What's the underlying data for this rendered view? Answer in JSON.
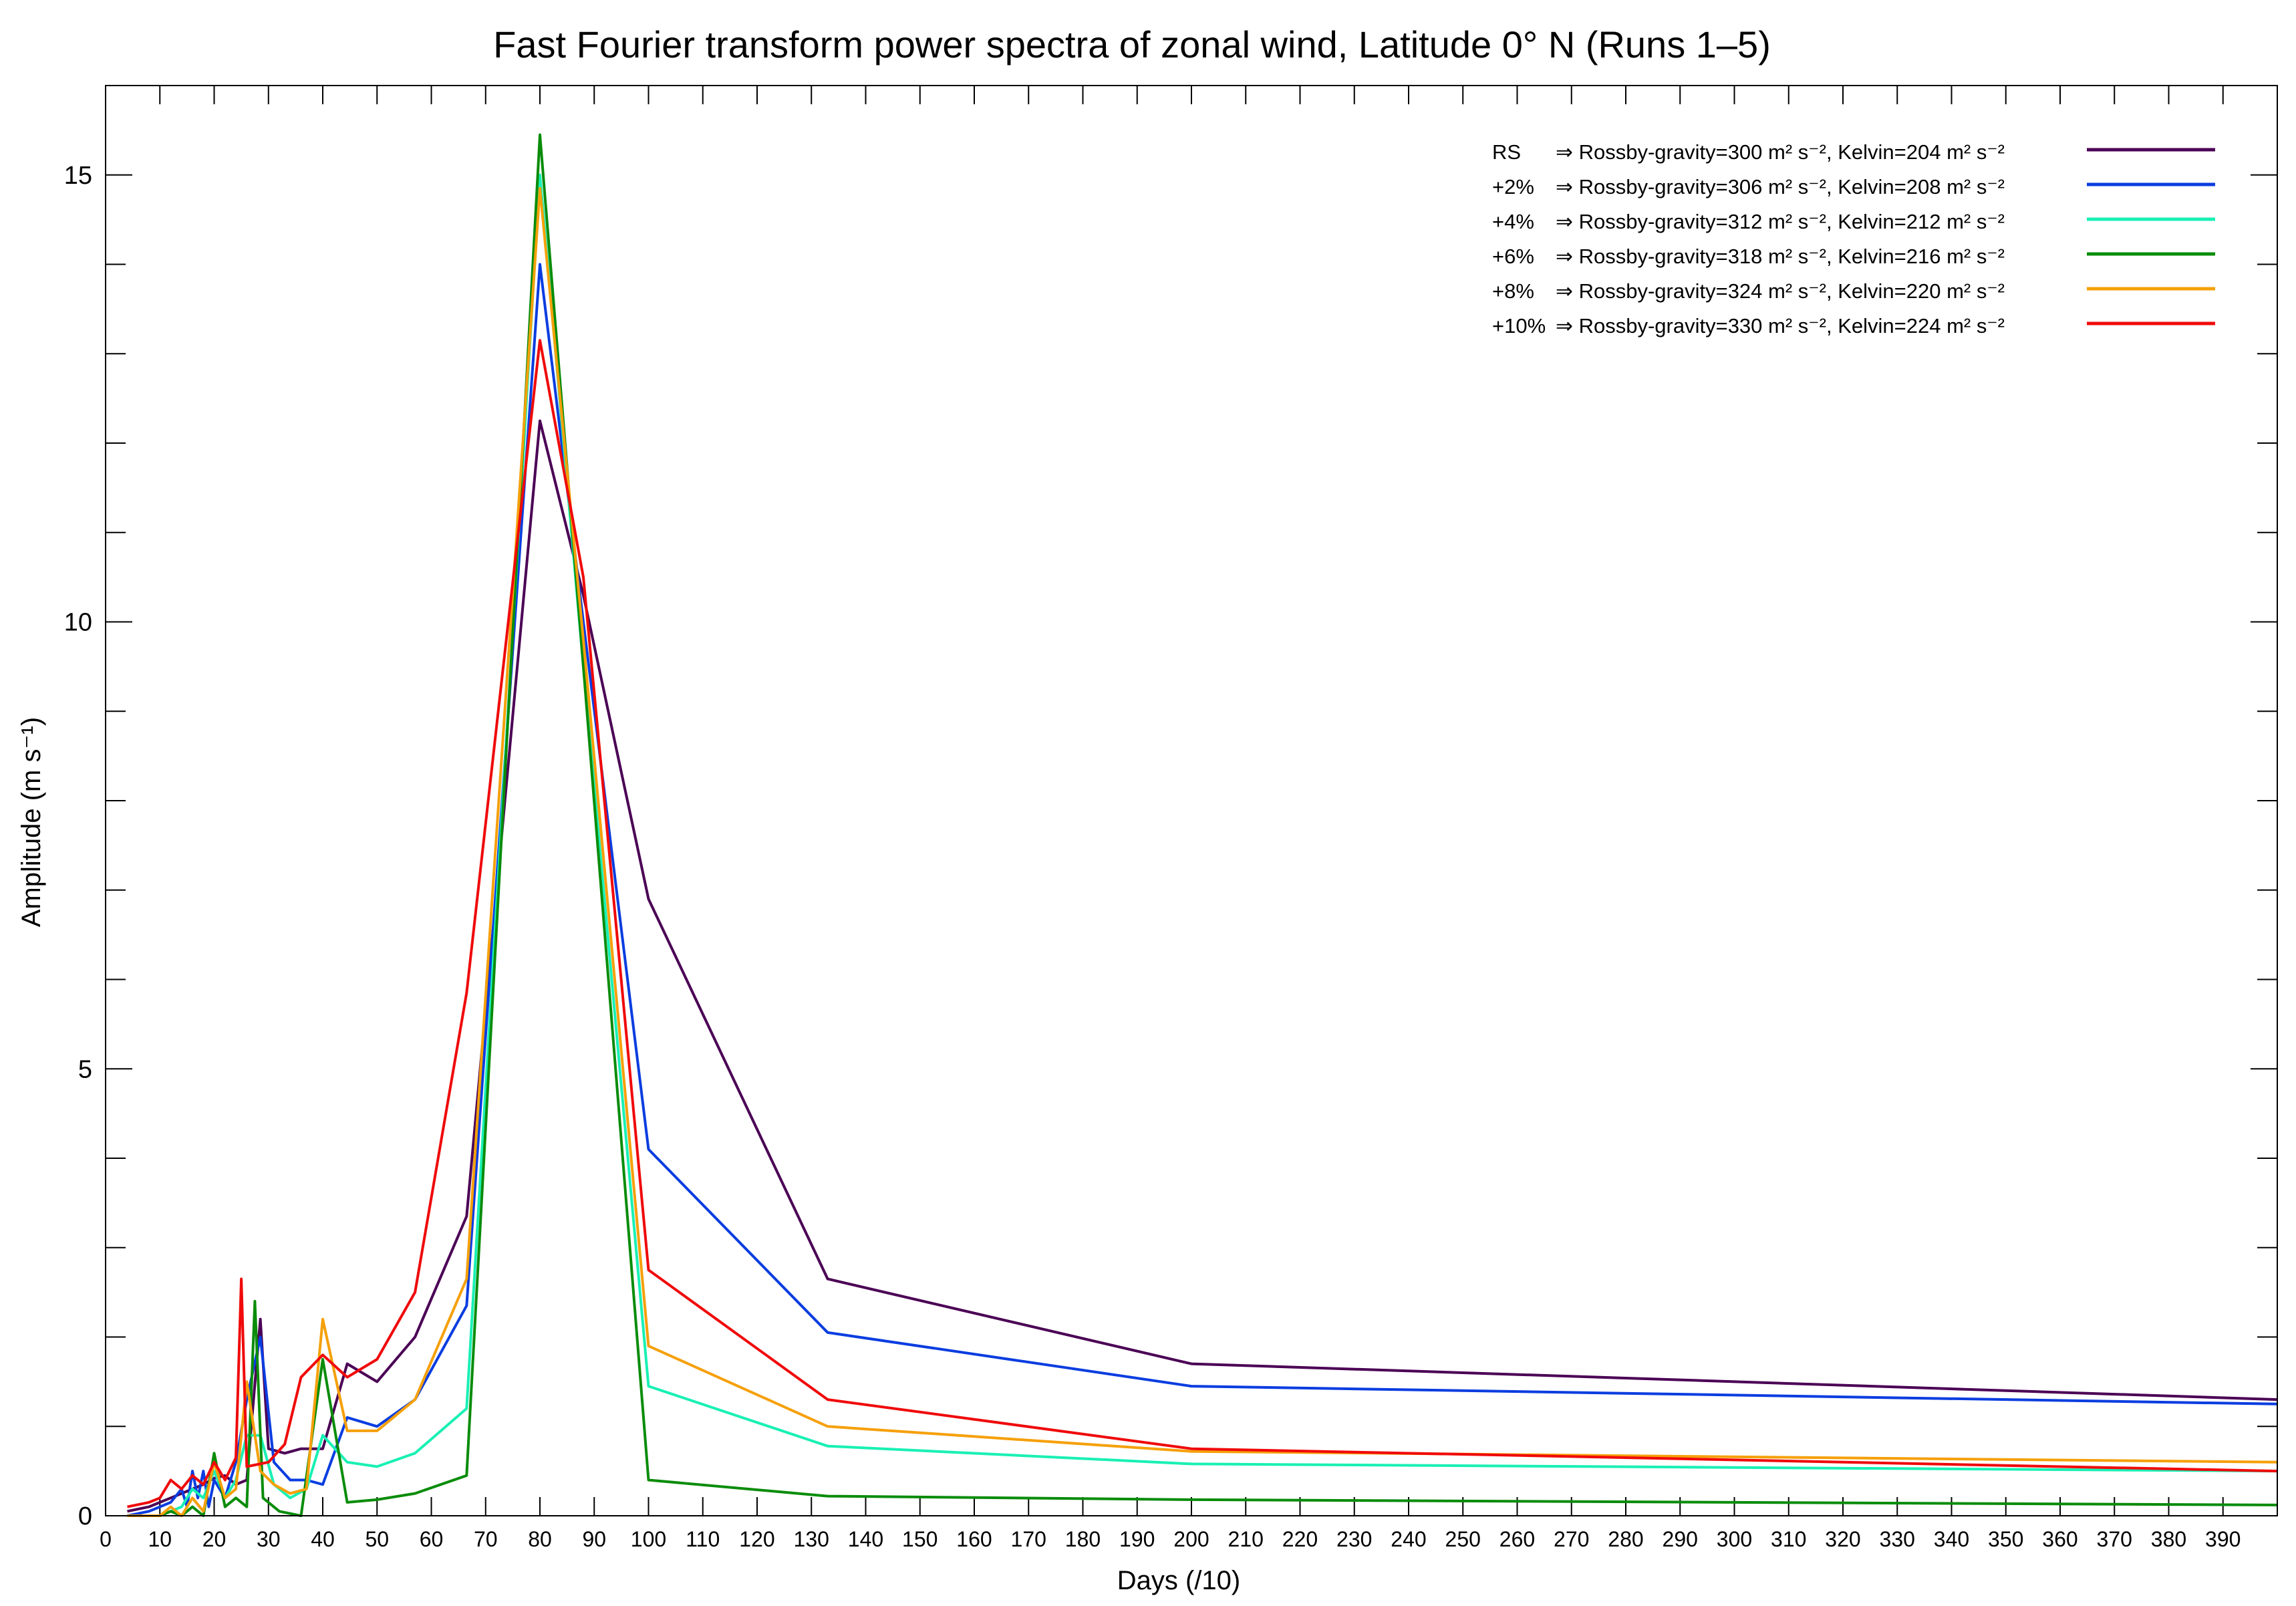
{
  "chart_data": {
    "type": "line",
    "title": "Fast Fourier transform power spectra of zonal wind, Latitude 0° N (Runs 1–5)",
    "xlabel": "Days (/10)",
    "ylabel": "Amplitude (m s⁻¹)",
    "xlim": [
      0,
      400
    ],
    "ylim": [
      0,
      16
    ],
    "xticks": [
      0,
      10,
      20,
      30,
      40,
      50,
      60,
      70,
      80,
      90,
      100,
      110,
      120,
      130,
      140,
      150,
      160,
      170,
      180,
      190,
      200,
      210,
      220,
      230,
      240,
      250,
      260,
      270,
      280,
      290,
      300,
      310,
      320,
      330,
      340,
      350,
      360,
      370,
      380,
      390
    ],
    "yticks": [
      0,
      5,
      10,
      15
    ],
    "grid": false,
    "legend_position": "top-right",
    "series": [
      {
        "name": "RS",
        "legend_text": "⇒ Rossby-gravity=300 m² s⁻², Kelvin=204 m² s⁻²",
        "color": "#4b0055",
        "x": [
          4,
          8,
          10,
          12,
          14,
          16,
          18,
          20,
          22,
          24,
          26,
          28.5,
          30,
          33,
          36,
          40,
          44.5,
          50,
          57,
          66.5,
          80,
          88,
          100,
          133,
          200,
          400
        ],
        "y": [
          0.05,
          0.1,
          0.15,
          0.2,
          0.25,
          0.3,
          0.35,
          0.42,
          0.45,
          0.35,
          0.4,
          2.2,
          0.75,
          0.7,
          0.75,
          0.75,
          1.7,
          1.5,
          2.0,
          3.35,
          12.25,
          10.3,
          6.9,
          2.65,
          1.7,
          1.3
        ]
      },
      {
        "name": "+2%",
        "legend_text": "⇒ Rossby-gravity=306 m² s⁻², Kelvin=208 m² s⁻²",
        "color": "#0a3de0",
        "x": [
          4,
          8,
          10,
          12,
          14,
          15,
          16,
          17,
          18,
          19,
          20,
          22,
          24,
          26,
          28.5,
          31,
          34,
          37,
          40,
          44.5,
          50,
          57,
          66.5,
          80,
          88,
          100,
          133,
          200,
          400
        ],
        "y": [
          0.0,
          0.05,
          0.1,
          0.15,
          0.3,
          0.1,
          0.5,
          0.2,
          0.5,
          0.1,
          0.4,
          0.2,
          0.6,
          1.3,
          2.0,
          0.6,
          0.4,
          0.4,
          0.35,
          1.1,
          1.0,
          1.3,
          2.35,
          14.0,
          10.0,
          4.1,
          2.05,
          1.45,
          1.25
        ]
      },
      {
        "name": "+4%",
        "legend_text": "⇒ Rossby-gravity=312 m² s⁻², Kelvin=212 m² s⁻²",
        "color": "#19f0b4",
        "x": [
          4,
          10,
          14,
          16,
          18,
          20,
          22,
          24,
          26,
          28.5,
          31,
          34,
          37,
          40,
          44.5,
          50,
          57,
          66.5,
          80,
          88,
          100,
          133,
          200,
          400
        ],
        "y": [
          0.0,
          0.0,
          0.1,
          0.3,
          0.2,
          0.5,
          0.2,
          0.4,
          0.9,
          0.9,
          0.35,
          0.2,
          0.3,
          0.9,
          0.6,
          0.55,
          0.7,
          1.2,
          15.0,
          9.5,
          1.45,
          0.78,
          0.58,
          0.5
        ]
      },
      {
        "name": "+6%",
        "legend_text": "⇒ Rossby-gravity=318 m² s⁻², Kelvin=216 m² s⁻²",
        "color": "#0a8c0a",
        "x": [
          4,
          10,
          12,
          14,
          16,
          18,
          20,
          22,
          24,
          26,
          27.5,
          29,
          32,
          36,
          40,
          44.5,
          50,
          57,
          66.5,
          80,
          88,
          100,
          133,
          200,
          400
        ],
        "y": [
          0.0,
          0.0,
          0.05,
          0.0,
          0.1,
          0.0,
          0.7,
          0.1,
          0.2,
          0.1,
          2.4,
          0.2,
          0.05,
          0.0,
          1.75,
          0.15,
          0.18,
          0.25,
          0.45,
          15.45,
          9.5,
          0.4,
          0.22,
          0.18,
          0.12
        ]
      },
      {
        "name": "+8%",
        "legend_text": "⇒ Rossby-gravity=324 m² s⁻², Kelvin=220 m² s⁻²",
        "color": "#f5a00a",
        "x": [
          4,
          10,
          12,
          14,
          16,
          18,
          20,
          22,
          24,
          26,
          28.5,
          31,
          34,
          37,
          40,
          44.5,
          50,
          57,
          66.5,
          80,
          88,
          100,
          133,
          200,
          400
        ],
        "y": [
          0.0,
          0.0,
          0.1,
          0.0,
          0.2,
          0.05,
          0.6,
          0.2,
          0.3,
          1.5,
          0.5,
          0.35,
          0.25,
          0.3,
          2.2,
          0.95,
          0.95,
          1.3,
          2.65,
          14.85,
          9.8,
          1.9,
          1.0,
          0.72,
          0.6
        ]
      },
      {
        "name": "+10%",
        "legend_text": "⇒ Rossby-gravity=330 m² s⁻², Kelvin=224 m² s⁻²",
        "color": "#f00a0a",
        "x": [
          4,
          8,
          10,
          12,
          14,
          16,
          18,
          20,
          22,
          24,
          25,
          26,
          30,
          33,
          36,
          40,
          44.5,
          50,
          57,
          66.5,
          80,
          88,
          100,
          133,
          200,
          400
        ],
        "y": [
          0.1,
          0.15,
          0.2,
          0.4,
          0.3,
          0.45,
          0.35,
          0.6,
          0.4,
          0.65,
          2.65,
          0.55,
          0.6,
          0.8,
          1.55,
          1.8,
          1.55,
          1.75,
          2.5,
          5.85,
          13.15,
          10.5,
          2.75,
          1.3,
          0.75,
          0.5
        ]
      }
    ]
  }
}
